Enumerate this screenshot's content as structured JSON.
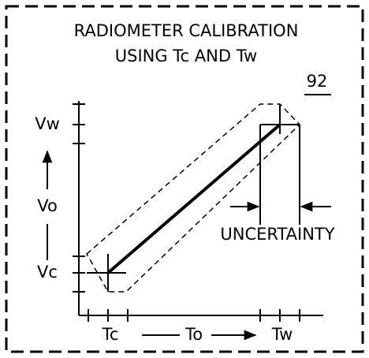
{
  "title": {
    "line1": "RADIOMETER CALIBRATION",
    "line2": "USING Tc AND Tw",
    "figure_number": "92"
  },
  "y_axis": {
    "top_label": "Vw",
    "axis_label": "Vo",
    "bottom_label": "Vc"
  },
  "x_axis": {
    "left_label": "Tc",
    "axis_label": "To",
    "right_label": "Tw"
  },
  "annotation": "UNCERTAINTY"
}
